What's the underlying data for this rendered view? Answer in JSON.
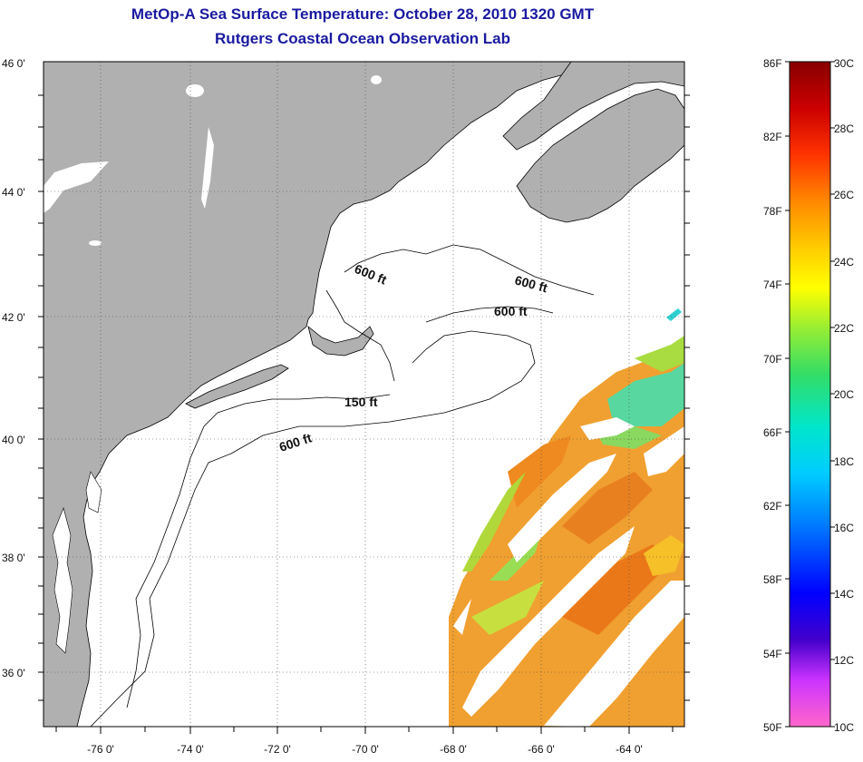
{
  "title": "MetOp-A Sea Surface Temperature:  October 28, 2010 1320 GMT",
  "subtitle": "Rutgers Coastal Ocean Observation Lab",
  "map": {
    "lon_range": [
      -77,
      -63
    ],
    "lat_range": [
      35,
      46
    ],
    "lon_ticks": [
      "-76 0'",
      "-74 0'",
      "-72 0'",
      "-70 0'",
      "-68 0'",
      "-66 0'",
      "-64 0'"
    ],
    "lat_ticks": [
      "46 0'",
      "44 0'",
      "42 0'",
      "40 0'",
      "38 0'",
      "36 0'"
    ],
    "land_color": "#b0b0b0",
    "grid": "dotted",
    "isobaths": [
      {
        "label": "600 ft"
      },
      {
        "label": "600 ft"
      },
      {
        "label": "600 ft"
      },
      {
        "label": "150 ft"
      },
      {
        "label": "600 ft"
      }
    ]
  },
  "colorbar": {
    "f_labels": [
      "86F",
      "82F",
      "78F",
      "74F",
      "70F",
      "66F",
      "62F",
      "58F",
      "54F",
      "50F"
    ],
    "c_labels": [
      "30C",
      "28C",
      "26C",
      "24C",
      "22C",
      "20C",
      "18C",
      "16C",
      "14C",
      "12C",
      "10C"
    ],
    "colors": [
      "#ff66cc",
      "#cc33ff",
      "#4400cc",
      "#0000ff",
      "#0077ff",
      "#00ccff",
      "#00e6cc",
      "#33dd66",
      "#99ee33",
      "#ffff00",
      "#ffcc00",
      "#ff8800",
      "#ff3300",
      "#cc0000",
      "#880000"
    ]
  }
}
